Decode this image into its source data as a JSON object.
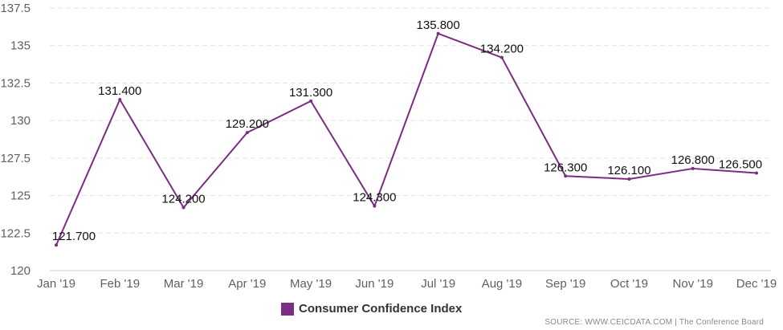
{
  "chart_data": {
    "type": "line",
    "categories": [
      "Jan '19",
      "Feb '19",
      "Mar '19",
      "Apr '19",
      "May '19",
      "Jun '19",
      "Jul '19",
      "Aug '19",
      "Sep '19",
      "Oct '19",
      "Nov '19",
      "Dec '19"
    ],
    "series": [
      {
        "name": "Consumer Confidence Index",
        "values": [
          121.7,
          131.4,
          124.2,
          129.2,
          131.3,
          124.3,
          135.8,
          134.2,
          126.3,
          126.1,
          126.8,
          126.5
        ],
        "labels": [
          "121.700",
          "131.400",
          "124.200",
          "129.200",
          "131.300",
          "124.300",
          "135.800",
          "134.200",
          "126.300",
          "126.100",
          "126.800",
          "126.500"
        ],
        "color": "#7b2d82"
      }
    ],
    "yticks": [
      "120",
      "122.5",
      "125",
      "127.5",
      "130",
      "132.5",
      "135",
      "137.5"
    ],
    "ylim": [
      120,
      137.5
    ],
    "grid": true,
    "legend_position": "bottom-center"
  },
  "legend": {
    "label": "Consumer Confidence Index",
    "color": "#7b2d82"
  },
  "source": "SOURCE: WWW.CEICDATA.COM | The Conference Board"
}
